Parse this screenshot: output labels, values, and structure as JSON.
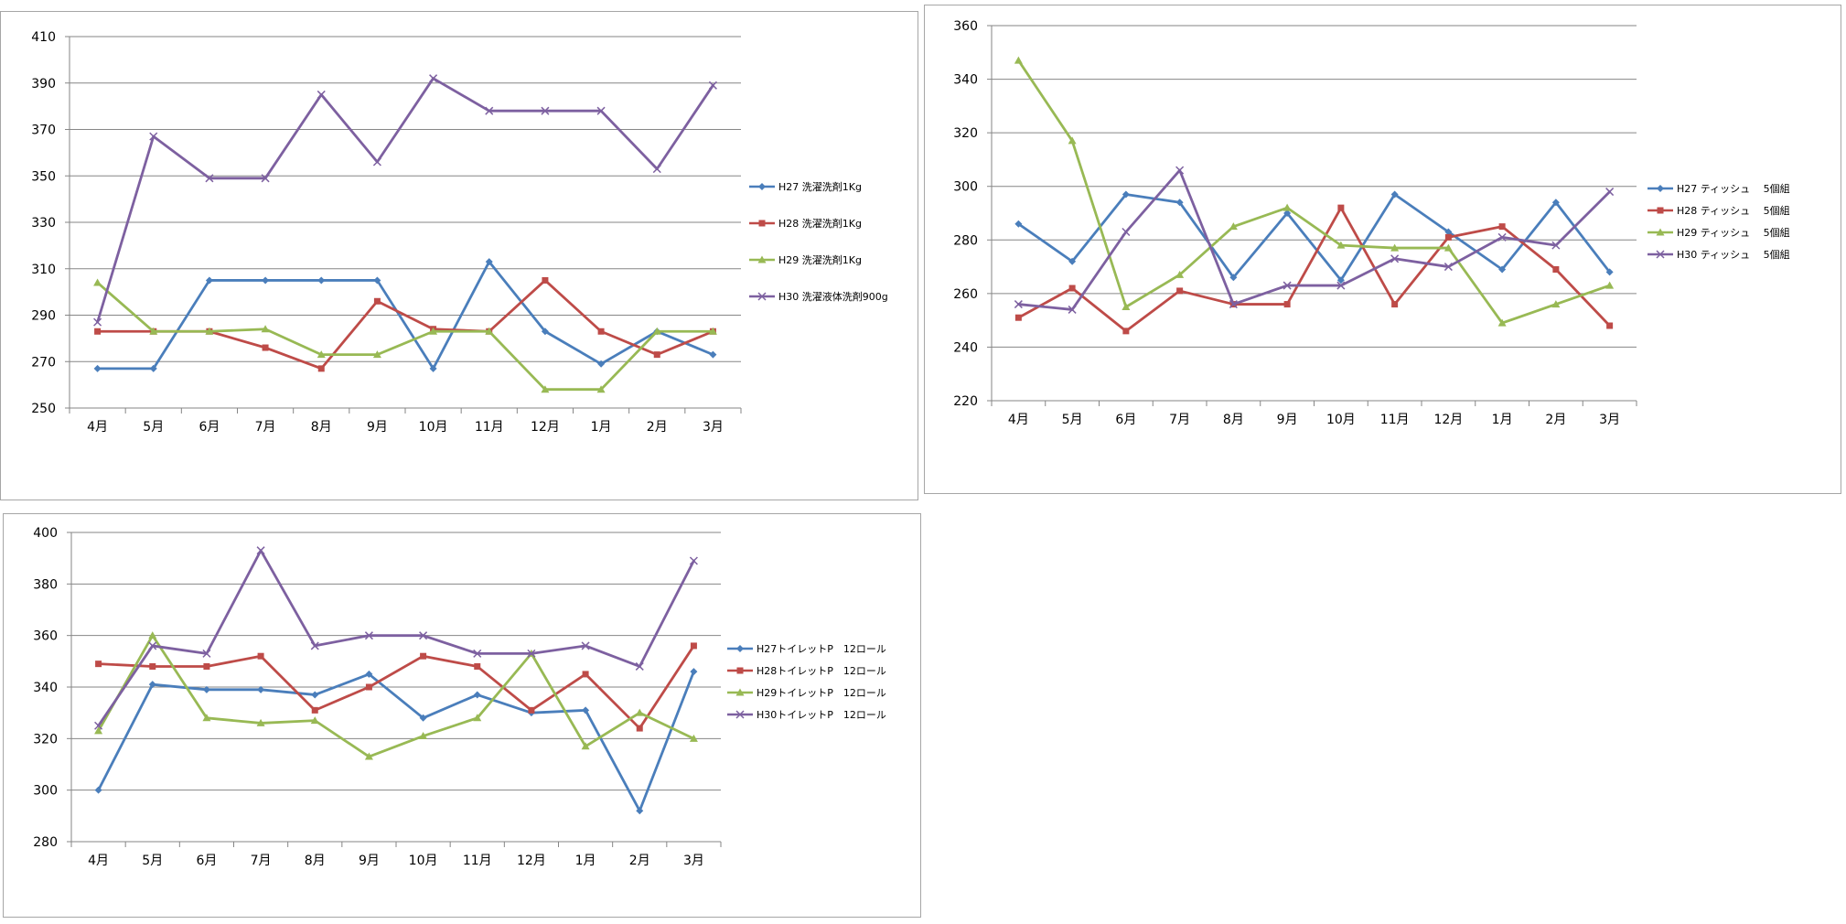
{
  "chart_data": [
    {
      "type": "line",
      "categories": [
        "4月",
        "5月",
        "6月",
        "7月",
        "8月",
        "9月",
        "10月",
        "11月",
        "12月",
        "1月",
        "2月",
        "3月"
      ],
      "ylim": [
        250,
        410
      ],
      "yticks": [
        250,
        270,
        290,
        310,
        330,
        350,
        370,
        390,
        410
      ],
      "grid": true,
      "legend_position": "right",
      "series": [
        {
          "name": "H27 洗濯洗剤1Kg",
          "color": "#4a7ebb",
          "marker": "diamond",
          "values": [
            267,
            267,
            305,
            305,
            305,
            305,
            267,
            313,
            283,
            269,
            283,
            273
          ]
        },
        {
          "name": "H28 洗濯洗剤1Kg",
          "color": "#be4b48",
          "marker": "square",
          "values": [
            283,
            283,
            283,
            276,
            267,
            296,
            284,
            283,
            305,
            283,
            273,
            283
          ]
        },
        {
          "name": "H29 洗濯洗剤1Kg",
          "color": "#98b954",
          "marker": "triangle",
          "values": [
            304,
            283,
            283,
            284,
            273,
            273,
            283,
            283,
            258,
            258,
            283,
            283
          ]
        },
        {
          "name": "H30 洗濯液体洗剤900g",
          "color": "#7d60a0",
          "marker": "x",
          "values": [
            287,
            367,
            349,
            349,
            385,
            356,
            392,
            378,
            378,
            378,
            353,
            389
          ]
        }
      ]
    },
    {
      "type": "line",
      "categories": [
        "4月",
        "5月",
        "6月",
        "7月",
        "8月",
        "9月",
        "10月",
        "11月",
        "12月",
        "1月",
        "2月",
        "3月"
      ],
      "ylim": [
        220,
        360
      ],
      "yticks": [
        220,
        240,
        260,
        280,
        300,
        320,
        340,
        360
      ],
      "grid": true,
      "legend_position": "right",
      "series": [
        {
          "name": "H27 ティッシュ　 5個組",
          "color": "#4a7ebb",
          "marker": "diamond",
          "values": [
            286,
            272,
            297,
            294,
            266,
            290,
            265,
            297,
            283,
            269,
            294,
            268
          ]
        },
        {
          "name": "H28 ティッシュ　 5個組",
          "color": "#be4b48",
          "marker": "square",
          "values": [
            251,
            262,
            246,
            261,
            256,
            256,
            292,
            256,
            281,
            285,
            269,
            248
          ]
        },
        {
          "name": "H29 ティッシュ　 5個組",
          "color": "#98b954",
          "marker": "triangle",
          "values": [
            347,
            317,
            255,
            267,
            285,
            292,
            278,
            277,
            277,
            249,
            256,
            263
          ]
        },
        {
          "name": "H30 ティッシュ　 5個組",
          "color": "#7d60a0",
          "marker": "x",
          "values": [
            256,
            254,
            283,
            306,
            256,
            263,
            263,
            273,
            270,
            281,
            278,
            298
          ]
        }
      ]
    },
    {
      "type": "line",
      "categories": [
        "4月",
        "5月",
        "6月",
        "7月",
        "8月",
        "9月",
        "10月",
        "11月",
        "12月",
        "1月",
        "2月",
        "3月"
      ],
      "ylim": [
        280,
        400
      ],
      "yticks": [
        280,
        300,
        320,
        340,
        360,
        380,
        400
      ],
      "grid": true,
      "legend_position": "right",
      "series": [
        {
          "name": "H27トイレットP　12ロール",
          "color": "#4a7ebb",
          "marker": "diamond",
          "values": [
            300,
            341,
            339,
            339,
            337,
            345,
            328,
            337,
            330,
            331,
            292,
            346
          ]
        },
        {
          "name": "H28トイレットP　12ロール",
          "color": "#be4b48",
          "marker": "square",
          "values": [
            349,
            348,
            348,
            352,
            331,
            340,
            352,
            348,
            331,
            345,
            324,
            356
          ]
        },
        {
          "name": "H29トイレットP　12ロール",
          "color": "#98b954",
          "marker": "triangle",
          "values": [
            323,
            360,
            328,
            326,
            327,
            313,
            321,
            328,
            353,
            317,
            330,
            320
          ]
        },
        {
          "name": "H30トイレットP　12ロール",
          "color": "#7d60a0",
          "marker": "x",
          "values": [
            325,
            356,
            353,
            393,
            356,
            360,
            360,
            353,
            353,
            356,
            348,
            389
          ]
        }
      ]
    }
  ]
}
